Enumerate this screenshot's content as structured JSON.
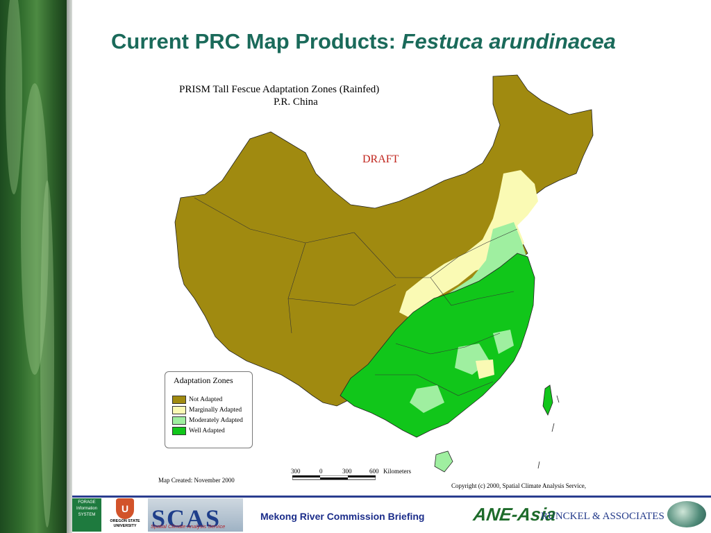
{
  "slide": {
    "title_prefix": "Current PRC Map Products: ",
    "title_species": "Festuca arundinacea"
  },
  "map": {
    "title_line1": "PRISM Tall Fescue Adaptation Zones  (Rainfed)",
    "title_line2": "P.R. China",
    "draft_label": "DRAFT",
    "legend": {
      "title": "Adaptation Zones",
      "items": [
        {
          "label": "Not Adapted",
          "color": "#a08a10"
        },
        {
          "label": "Marginally Adapted",
          "color": "#fafab4"
        },
        {
          "label": "Moderately Adapted",
          "color": "#9fefa0"
        },
        {
          "label": "Well Adapted",
          "color": "#11c61a"
        }
      ]
    },
    "scale": {
      "ticks": [
        "300",
        "0",
        "300",
        "600"
      ],
      "unit": "Kilometers"
    },
    "created": "Map Created:  November 2000",
    "copyright": "Copyright (c) 2000, Spatial Climate Analysis Service,"
  },
  "footer": {
    "fis_text": "FORAGE Information SYSTEM",
    "osu_name": "OREGON STATE UNIVERSITY",
    "scas_big": "SCAS",
    "scas_small": "Spatial Climate Analysis Service",
    "briefing": "Mekong River Commission Briefing",
    "anie": "ANE-Asia",
    "runckel": "RUNCKEL & ASSOCIATES"
  }
}
